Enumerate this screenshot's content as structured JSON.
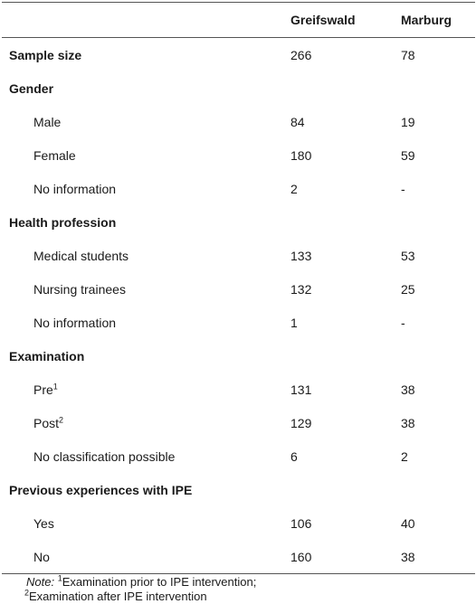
{
  "header": {
    "col1": "",
    "col2": "Greifswald",
    "col3": "Marburg"
  },
  "rows": [
    {
      "label": "Sample size",
      "greifswald": "266",
      "marburg": "78",
      "type": "section"
    },
    {
      "label": "Gender",
      "greifswald": "",
      "marburg": "",
      "type": "section"
    },
    {
      "label": "Male",
      "greifswald": "84",
      "marburg": "19",
      "type": "item"
    },
    {
      "label": "Female",
      "greifswald": "180",
      "marburg": "59",
      "type": "item"
    },
    {
      "label": "No information",
      "greifswald": "2",
      "marburg": "-",
      "type": "item"
    },
    {
      "label": "Health profession",
      "greifswald": "",
      "marburg": "",
      "type": "section"
    },
    {
      "label": "Medical students",
      "greifswald": "133",
      "marburg": "53",
      "type": "item"
    },
    {
      "label": "Nursing trainees",
      "greifswald": "132",
      "marburg": "25",
      "type": "item"
    },
    {
      "label": "No information",
      "greifswald": "1",
      "marburg": "-",
      "type": "item"
    },
    {
      "label": "Examination",
      "greifswald": "",
      "marburg": "",
      "type": "section"
    },
    {
      "label": "Pre",
      "sup": "1",
      "greifswald": "131",
      "marburg": "38",
      "type": "item"
    },
    {
      "label": "Post",
      "sup": "2",
      "greifswald": "129",
      "marburg": "38",
      "type": "item"
    },
    {
      "label": "No classification possible",
      "greifswald": "6",
      "marburg": "2",
      "type": "item"
    },
    {
      "label": "Previous experiences with IPE",
      "greifswald": "",
      "marburg": "",
      "type": "section"
    },
    {
      "label": "Yes",
      "greifswald": "106",
      "marburg": "40",
      "type": "item"
    },
    {
      "label": "No",
      "greifswald": "160",
      "marburg": "38",
      "type": "item"
    }
  ],
  "note": {
    "prefix": "Note:",
    "sup1": "1",
    "text1": "Examination prior to IPE intervention;",
    "sup2": "2",
    "text2": "Examination after IPE intervention"
  }
}
